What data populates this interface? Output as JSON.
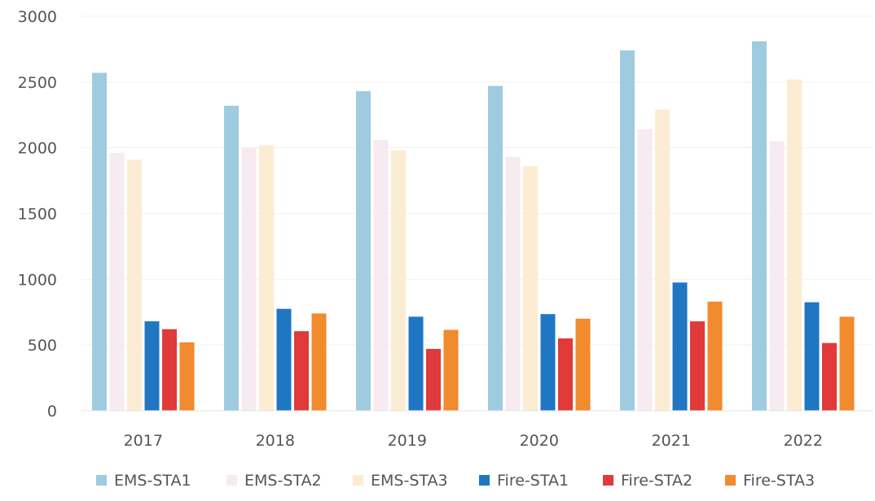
{
  "chart_data": {
    "type": "bar",
    "title": "",
    "xlabel": "",
    "ylabel": "",
    "categories": [
      "2017",
      "2018",
      "2019",
      "2020",
      "2021",
      "2022"
    ],
    "ylim": [
      0,
      3000
    ],
    "yticks": [
      0,
      500,
      1000,
      1500,
      2000,
      2500,
      3000
    ],
    "grid": true,
    "legend_position": "bottom",
    "series": [
      {
        "name": "EMS-STA1",
        "color": "#9fcbe0",
        "values": [
          2570,
          2320,
          2430,
          2470,
          2740,
          2810
        ]
      },
      {
        "name": "EMS-STA2",
        "color": "#f7eaf0",
        "values": [
          1960,
          2000,
          2060,
          1930,
          2140,
          2050
        ]
      },
      {
        "name": "EMS-STA3",
        "color": "#fcecd2",
        "values": [
          1910,
          2020,
          1980,
          1860,
          2290,
          2520
        ]
      },
      {
        "name": "Fire-STA1",
        "color": "#1f77c4",
        "values": [
          680,
          775,
          715,
          735,
          975,
          825
        ]
      },
      {
        "name": "Fire-STA2",
        "color": "#e03a3a",
        "values": [
          620,
          605,
          470,
          550,
          680,
          515
        ]
      },
      {
        "name": "Fire-STA3",
        "color": "#f28a2e",
        "values": [
          520,
          740,
          615,
          700,
          830,
          715
        ]
      }
    ]
  }
}
